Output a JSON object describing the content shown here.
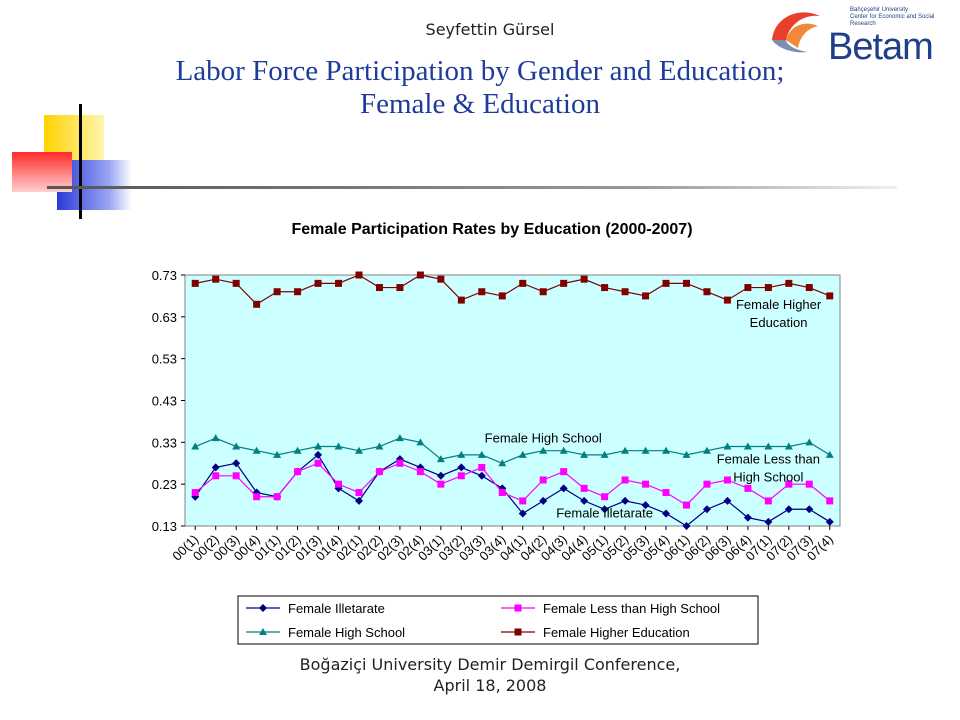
{
  "slide": {
    "author": "Seyfettin Gürsel",
    "title_line1": "Labor Force Participation by Gender and Education;",
    "title_line2": "Female & Education",
    "footer_line1": "Boğaziçi University Demir Demirgil Conference,",
    "footer_line2": "April 18, 2008",
    "logo": {
      "name": "Betam",
      "sub_line1": "Bahçeşehir University",
      "sub_line2": "Center for Economic and Social Research"
    },
    "colors": {
      "title": "#1e3c9a",
      "plot_bg": "#ccffff"
    }
  },
  "chart_data": {
    "type": "line",
    "title": "Female Participation Rates by Education (2000-2007)",
    "xlabel": "",
    "ylabel": "",
    "ylim": [
      0.13,
      0.73
    ],
    "yticks": [
      "0.73",
      "0.63",
      "0.53",
      "0.43",
      "0.33",
      "0.23",
      "0.13"
    ],
    "grid": false,
    "legend_position": "bottom",
    "categories": [
      "00(1)",
      "00(2)",
      "00(3)",
      "00(4)",
      "01(1)",
      "01(2)",
      "01(3)",
      "01(4)",
      "02(1)",
      "02(2)",
      "02(3)",
      "02(4)",
      "03(1)",
      "03(2)",
      "03(3)",
      "03(4)",
      "04(1)",
      "04(2)",
      "04(3)",
      "04(4)",
      "05(1)",
      "05(2)",
      "05(3)",
      "05(4)",
      "06(1)",
      "06(2)",
      "06(3)",
      "06(4)",
      "07(1)",
      "07(2)",
      "07(3)",
      "07(4)"
    ],
    "series": [
      {
        "name": "Female Illetarate",
        "color": "#000080",
        "marker": "diamond",
        "values": [
          0.2,
          0.27,
          0.28,
          0.21,
          0.2,
          0.26,
          0.3,
          0.22,
          0.19,
          0.26,
          0.29,
          0.27,
          0.25,
          0.27,
          0.25,
          0.22,
          0.16,
          0.19,
          0.22,
          0.19,
          0.17,
          0.19,
          0.18,
          0.16,
          0.13,
          0.17,
          0.19,
          0.15,
          0.14,
          0.17,
          0.17,
          0.14
        ]
      },
      {
        "name": "Female Less than High School",
        "color": "#ff00ff",
        "marker": "square",
        "values": [
          0.21,
          0.25,
          0.25,
          0.2,
          0.2,
          0.26,
          0.28,
          0.23,
          0.21,
          0.26,
          0.28,
          0.26,
          0.23,
          0.25,
          0.27,
          0.21,
          0.19,
          0.24,
          0.26,
          0.22,
          0.2,
          0.24,
          0.23,
          0.21,
          0.18,
          0.23,
          0.24,
          0.22,
          0.19,
          0.23,
          0.23,
          0.19
        ]
      },
      {
        "name": "Female High School",
        "color": "#008080",
        "marker": "triangle",
        "values": [
          0.32,
          0.34,
          0.32,
          0.31,
          0.3,
          0.31,
          0.32,
          0.32,
          0.31,
          0.32,
          0.34,
          0.33,
          0.29,
          0.3,
          0.3,
          0.28,
          0.3,
          0.31,
          0.31,
          0.3,
          0.3,
          0.31,
          0.31,
          0.31,
          0.3,
          0.31,
          0.32,
          0.32,
          0.32,
          0.32,
          0.33,
          0.3
        ]
      },
      {
        "name": "Female Higher Education",
        "color": "#800000",
        "marker": "square",
        "values": [
          0.71,
          0.72,
          0.71,
          0.66,
          0.69,
          0.69,
          0.71,
          0.71,
          0.73,
          0.7,
          0.7,
          0.73,
          0.72,
          0.67,
          0.69,
          0.68,
          0.71,
          0.69,
          0.71,
          0.72,
          0.7,
          0.69,
          0.68,
          0.71,
          0.71,
          0.69,
          0.67,
          0.7,
          0.7,
          0.71,
          0.7,
          0.68
        ]
      }
    ],
    "annotations": [
      {
        "text": "Female Higher Education",
        "value": 0.63,
        "category_index": 28.5
      },
      {
        "text": "Female High School",
        "value": 0.33,
        "category_index": 17
      },
      {
        "text": "Female Less than High School",
        "value": 0.26,
        "category_index": 28
      },
      {
        "text": "Female Illetarate",
        "value": 0.15,
        "category_index": 20
      }
    ]
  }
}
